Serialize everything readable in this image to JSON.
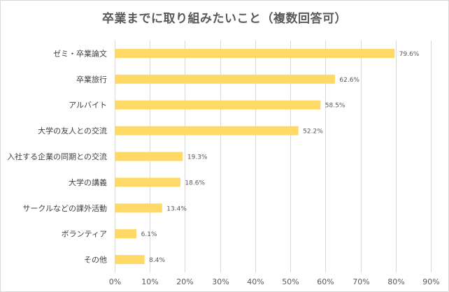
{
  "chart_data": {
    "type": "bar",
    "orientation": "horizontal",
    "title": "卒業までに取り組みたいこと（複数回答可）",
    "categories": [
      "ゼミ・卒業論文",
      "卒業旅行",
      "アルバイト",
      "大学の友人との交流",
      "入社する企業の同期との交流",
      "大学の講義",
      "サークルなどの課外活動",
      "ボランティア",
      "その他"
    ],
    "values": [
      79.6,
      62.6,
      58.5,
      52.2,
      19.3,
      18.6,
      13.4,
      6.1,
      8.4
    ],
    "value_labels": [
      "79.6%",
      "62.6%",
      "58.5%",
      "52.2%",
      "19.3%",
      "18.6%",
      "13.4%",
      "6.1%",
      "8.4%"
    ],
    "xlim": [
      0,
      90
    ],
    "x_ticks": [
      0,
      10,
      20,
      30,
      40,
      50,
      60,
      70,
      80,
      90
    ],
    "x_tick_labels": [
      "0%",
      "10%",
      "20%",
      "30%",
      "40%",
      "50%",
      "60%",
      "70%",
      "80%",
      "90%"
    ],
    "xlabel": "",
    "ylabel": "",
    "grid": true,
    "bar_color": "#FFD966",
    "grid_color": "#D9D9D9",
    "legend": "none"
  }
}
